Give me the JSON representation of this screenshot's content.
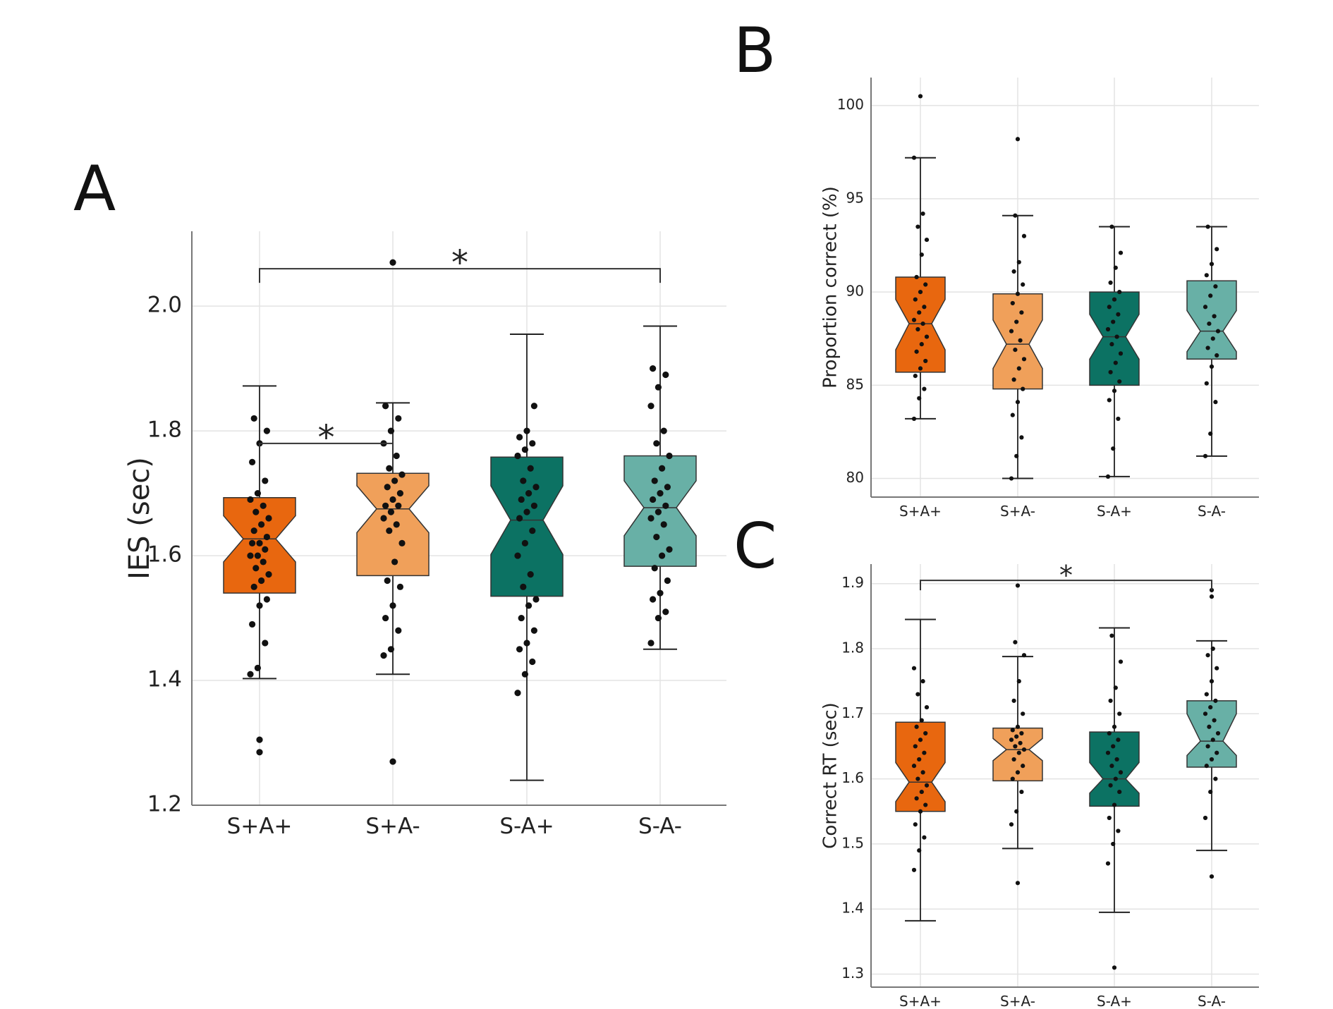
{
  "colors": {
    "S+A+": "#e8670f",
    "S+A-": "#f0a05a",
    "S-A+": "#0c7263",
    "S-A-": "#68b0a6",
    "grid": "#e3e3e3",
    "axis": "#777777",
    "points": "#111111"
  },
  "chart_data": [
    {
      "id": "A",
      "type": "box",
      "panel_label": "A",
      "ylabel": "IES (sec)",
      "xlabel": "",
      "categories": [
        "S+A+",
        "S+A-",
        "S-A+",
        "S-A-"
      ],
      "ylim": [
        1.2,
        2.12
      ],
      "yticks": [
        1.2,
        1.4,
        1.6,
        1.8,
        2.0
      ],
      "ytick_labels": [
        "1.2",
        "1.4",
        "1.6",
        "1.8",
        "2.0"
      ],
      "grid": true,
      "boxes": [
        {
          "name": "S+A+",
          "whislo": 1.403,
          "q1": 1.54,
          "med": 1.627,
          "q3": 1.693,
          "whishi": 1.872,
          "notch_lo": 1.59,
          "notch_hi": 1.664,
          "fliers": [
            1.285,
            1.305
          ]
        },
        {
          "name": "S+A-",
          "whislo": 1.41,
          "q1": 1.568,
          "med": 1.675,
          "q3": 1.732,
          "whishi": 1.845,
          "notch_lo": 1.637,
          "notch_hi": 1.712,
          "fliers": [
            1.27,
            2.07
          ]
        },
        {
          "name": "S-A+",
          "whislo": 1.24,
          "q1": 1.535,
          "med": 1.657,
          "q3": 1.758,
          "whishi": 1.955,
          "notch_lo": 1.602,
          "notch_hi": 1.712,
          "fliers": []
        },
        {
          "name": "S-A-",
          "whislo": 1.45,
          "q1": 1.583,
          "med": 1.677,
          "q3": 1.76,
          "whishi": 1.968,
          "notch_lo": 1.632,
          "notch_hi": 1.72,
          "fliers": []
        }
      ],
      "points": [
        [
          1.41,
          1.42,
          1.46,
          1.49,
          1.52,
          1.53,
          1.55,
          1.56,
          1.57,
          1.58,
          1.59,
          1.6,
          1.6,
          1.61,
          1.62,
          1.62,
          1.63,
          1.64,
          1.65,
          1.66,
          1.67,
          1.68,
          1.69,
          1.7,
          1.72,
          1.75,
          1.78,
          1.8,
          1.82
        ],
        [
          1.44,
          1.45,
          1.48,
          1.5,
          1.52,
          1.55,
          1.56,
          1.59,
          1.62,
          1.64,
          1.65,
          1.66,
          1.67,
          1.68,
          1.68,
          1.69,
          1.7,
          1.71,
          1.72,
          1.73,
          1.74,
          1.76,
          1.78,
          1.8,
          1.82,
          1.84
        ],
        [
          1.38,
          1.41,
          1.43,
          1.45,
          1.46,
          1.48,
          1.5,
          1.52,
          1.53,
          1.55,
          1.57,
          1.6,
          1.62,
          1.64,
          1.66,
          1.67,
          1.68,
          1.69,
          1.7,
          1.71,
          1.72,
          1.74,
          1.76,
          1.77,
          1.78,
          1.79,
          1.8,
          1.84
        ],
        [
          1.46,
          1.5,
          1.51,
          1.53,
          1.54,
          1.56,
          1.58,
          1.6,
          1.61,
          1.63,
          1.65,
          1.66,
          1.67,
          1.68,
          1.69,
          1.7,
          1.71,
          1.72,
          1.74,
          1.76,
          1.78,
          1.8,
          1.84,
          1.87,
          1.89,
          1.9
        ]
      ],
      "annotations": [
        {
          "from": "S+A+",
          "to": "S+A-",
          "text": "*",
          "y": 1.78
        },
        {
          "from": "S+A+",
          "to": "S-A-",
          "text": "*",
          "y": 2.06
        }
      ]
    },
    {
      "id": "B",
      "type": "box",
      "panel_label": "B",
      "ylabel": "Proportion correct (%)",
      "xlabel": "",
      "categories": [
        "S+A+",
        "S+A-",
        "S-A+",
        "S-A-"
      ],
      "ylim": [
        79.0,
        101.5
      ],
      "yticks": [
        80,
        85,
        90,
        95,
        100
      ],
      "ytick_labels": [
        "80",
        "85",
        "90",
        "95",
        "100"
      ],
      "grid": true,
      "boxes": [
        {
          "name": "S+A+",
          "whislo": 83.2,
          "q1": 85.7,
          "med": 88.3,
          "q3": 90.8,
          "whishi": 97.2,
          "notch_lo": 86.9,
          "notch_hi": 89.6,
          "fliers": [
            100.5
          ]
        },
        {
          "name": "S+A-",
          "whislo": 80.0,
          "q1": 84.8,
          "med": 87.2,
          "q3": 89.9,
          "whishi": 94.1,
          "notch_lo": 85.9,
          "notch_hi": 88.5,
          "fliers": [
            98.2
          ]
        },
        {
          "name": "S-A+",
          "whislo": 80.1,
          "q1": 85.0,
          "med": 87.6,
          "q3": 90.0,
          "whishi": 93.5,
          "notch_lo": 86.4,
          "notch_hi": 88.8,
          "fliers": []
        },
        {
          "name": "S-A-",
          "whislo": 81.2,
          "q1": 86.4,
          "med": 87.9,
          "q3": 90.6,
          "whishi": 93.5,
          "notch_lo": 86.8,
          "notch_hi": 89.0,
          "fliers": []
        }
      ],
      "points": [
        [
          83.2,
          84.3,
          84.8,
          85.5,
          85.9,
          86.3,
          86.8,
          87.2,
          87.6,
          88.0,
          88.3,
          88.5,
          88.9,
          89.2,
          89.6,
          90.0,
          90.4,
          90.8,
          92.0,
          92.8,
          93.5,
          94.2,
          97.2
        ],
        [
          80.0,
          81.2,
          82.2,
          83.4,
          84.1,
          84.8,
          85.3,
          85.9,
          86.4,
          86.9,
          87.4,
          87.9,
          88.4,
          88.9,
          89.4,
          89.9,
          90.4,
          91.1,
          91.6,
          93.0,
          94.1
        ],
        [
          80.1,
          81.6,
          83.2,
          84.2,
          84.7,
          85.2,
          85.7,
          86.2,
          86.7,
          87.2,
          87.6,
          88.0,
          88.4,
          88.8,
          89.2,
          89.6,
          90.0,
          90.5,
          91.3,
          92.1,
          93.5
        ],
        [
          81.2,
          82.4,
          84.1,
          85.1,
          86.0,
          86.6,
          87.0,
          87.5,
          87.9,
          88.3,
          88.7,
          89.2,
          89.8,
          90.3,
          90.9,
          91.5,
          92.3,
          93.5
        ]
      ],
      "annotations": []
    },
    {
      "id": "C",
      "type": "box",
      "panel_label": "C",
      "ylabel": "Correct RT (sec)",
      "xlabel": "",
      "categories": [
        "S+A+",
        "S+A-",
        "S-A+",
        "S-A-"
      ],
      "ylim": [
        1.28,
        1.93
      ],
      "yticks": [
        1.3,
        1.4,
        1.5,
        1.6,
        1.7,
        1.8,
        1.9
      ],
      "ytick_labels": [
        "1.3",
        "1.4",
        "1.5",
        "1.6",
        "1.7",
        "1.8",
        "1.9"
      ],
      "grid": true,
      "boxes": [
        {
          "name": "S+A+",
          "whislo": 1.382,
          "q1": 1.55,
          "med": 1.595,
          "q3": 1.687,
          "whishi": 1.845,
          "notch_lo": 1.565,
          "notch_hi": 1.625,
          "fliers": []
        },
        {
          "name": "S+A-",
          "whislo": 1.493,
          "q1": 1.597,
          "med": 1.645,
          "q3": 1.678,
          "whishi": 1.788,
          "notch_lo": 1.628,
          "notch_hi": 1.662,
          "fliers": [
            1.44,
            1.897
          ]
        },
        {
          "name": "S-A+",
          "whislo": 1.395,
          "q1": 1.558,
          "med": 1.6,
          "q3": 1.672,
          "whishi": 1.832,
          "notch_lo": 1.578,
          "notch_hi": 1.625,
          "fliers": [
            1.31
          ]
        },
        {
          "name": "S-A-",
          "whislo": 1.49,
          "q1": 1.618,
          "med": 1.658,
          "q3": 1.72,
          "whishi": 1.812,
          "notch_lo": 1.636,
          "notch_hi": 1.7,
          "fliers": [
            1.45,
            1.88,
            1.89
          ]
        }
      ],
      "points": [
        [
          1.46,
          1.49,
          1.51,
          1.53,
          1.55,
          1.56,
          1.57,
          1.58,
          1.59,
          1.6,
          1.61,
          1.62,
          1.63,
          1.64,
          1.65,
          1.66,
          1.67,
          1.68,
          1.69,
          1.71,
          1.73,
          1.75,
          1.77
        ],
        [
          1.53,
          1.55,
          1.58,
          1.6,
          1.61,
          1.62,
          1.63,
          1.64,
          1.645,
          1.65,
          1.655,
          1.66,
          1.665,
          1.67,
          1.675,
          1.68,
          1.7,
          1.72,
          1.75,
          1.79,
          1.81
        ],
        [
          1.47,
          1.5,
          1.52,
          1.54,
          1.56,
          1.58,
          1.59,
          1.6,
          1.61,
          1.62,
          1.63,
          1.64,
          1.65,
          1.66,
          1.67,
          1.68,
          1.7,
          1.72,
          1.74,
          1.78,
          1.82
        ],
        [
          1.54,
          1.58,
          1.6,
          1.62,
          1.63,
          1.64,
          1.65,
          1.66,
          1.67,
          1.68,
          1.69,
          1.7,
          1.71,
          1.72,
          1.73,
          1.75,
          1.77,
          1.79,
          1.8
        ]
      ],
      "annotations": [
        {
          "from": "S+A+",
          "to": "S-A-",
          "text": "*",
          "y": 1.905
        }
      ]
    }
  ]
}
